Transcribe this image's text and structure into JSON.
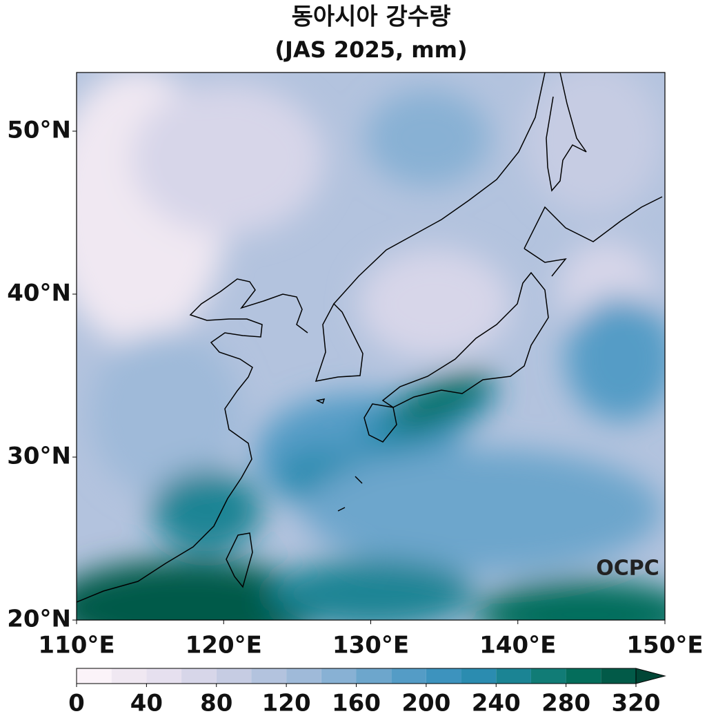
{
  "title": "동아시아 강수량",
  "subtitle": "(JAS 2025, mm)",
  "watermark": "OCPC",
  "map": {
    "xlim": [
      110,
      150
    ],
    "ylim": [
      20,
      53.6
    ],
    "xticks": [
      {
        "value": 110,
        "label": "110°E"
      },
      {
        "value": 120,
        "label": "120°E"
      },
      {
        "value": 130,
        "label": "130°E"
      },
      {
        "value": 140,
        "label": "140°E"
      },
      {
        "value": 150,
        "label": "150°E"
      }
    ],
    "yticks": [
      {
        "value": 20,
        "label": "20°N"
      },
      {
        "value": 30,
        "label": "30°N"
      },
      {
        "value": 40,
        "label": "40°N"
      },
      {
        "value": 50,
        "label": "50°N"
      }
    ]
  },
  "colorbar": {
    "levels": [
      0,
      20,
      40,
      60,
      80,
      100,
      120,
      140,
      160,
      180,
      200,
      220,
      240,
      260,
      280,
      300,
      320
    ],
    "colors": [
      "#fbf3f9",
      "#f0e8f2",
      "#e6e0ef",
      "#d7d6e9",
      "#c6cce3",
      "#b3c3de",
      "#9fbad9",
      "#88b1d4",
      "#6da6cc",
      "#549cc6",
      "#3d93be",
      "#2b8cb0",
      "#1b8494",
      "#117c76",
      "#046d5b",
      "#025a48"
    ],
    "extend_color": "#014636",
    "ticks": [
      0,
      40,
      80,
      120,
      160,
      200,
      240,
      280,
      320
    ]
  }
}
